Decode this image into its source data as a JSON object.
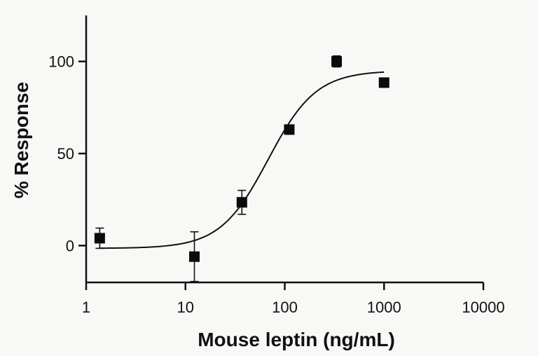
{
  "chart_data": {
    "type": "scatter",
    "xlabel": "Mouse leptin (ng/mL)",
    "ylabel": "% Response",
    "xscale": "log",
    "xlim": [
      1,
      10000
    ],
    "ylim": [
      -20,
      125
    ],
    "x_ticks": [
      1,
      10,
      100,
      1000,
      10000
    ],
    "x_tick_labels": [
      "1",
      "10",
      "100",
      "1000",
      "10000"
    ],
    "y_ticks": [
      0,
      50,
      100
    ],
    "y_tick_labels": [
      "0",
      "50",
      "100"
    ],
    "grid": false,
    "points": [
      {
        "x": 1.37,
        "y": 4,
        "err": 5.5
      },
      {
        "x": 12.3,
        "y": -6,
        "err": 13.5
      },
      {
        "x": 37,
        "y": 23.5,
        "err": 6.5
      },
      {
        "x": 111,
        "y": 63,
        "err": 1.5
      },
      {
        "x": 333,
        "y": 100,
        "err": 3
      },
      {
        "x": 1000,
        "y": 88.5,
        "err": 1
      }
    ],
    "fit": {
      "model": "four-parameter logistic",
      "bottom": -1.5,
      "top": 95,
      "ec50": 68,
      "hill": 1.8,
      "x_range": [
        1.37,
        1000
      ]
    }
  }
}
